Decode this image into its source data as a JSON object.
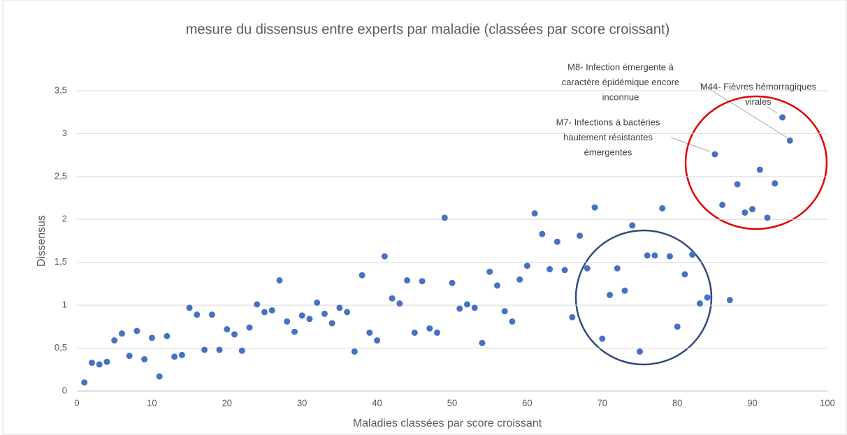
{
  "chart_data": {
    "type": "scatter",
    "title": "mesure du dissensus entre experts par maladie (classées par score croissant)",
    "x_label": "Maladies classées par score croissant",
    "y_label": "Dissensus",
    "color": "#4472c4",
    "grid": true,
    "xlim": [
      0,
      100
    ],
    "xticks": [
      0,
      10,
      20,
      30,
      40,
      50,
      60,
      70,
      80,
      90,
      100
    ],
    "ylim": [
      0,
      3.5
    ],
    "yticks": [
      0,
      {
        "value": 0.5,
        "label": "0,5"
      },
      1,
      {
        "value": 1.5,
        "label": "1,5"
      },
      2,
      {
        "value": 2.5,
        "label": "2,5"
      },
      3,
      {
        "value": 3.5,
        "label": "3,5"
      }
    ],
    "x": [
      1,
      2,
      3,
      4,
      5,
      6,
      7,
      8,
      9,
      10,
      11,
      12,
      13,
      14,
      15,
      16,
      17,
      18,
      19,
      20,
      21,
      22,
      23,
      24,
      25,
      26,
      27,
      28,
      29,
      30,
      31,
      32,
      33,
      34,
      35,
      36,
      37,
      38,
      39,
      40,
      41,
      42,
      43,
      44,
      45,
      46,
      47,
      48,
      49,
      50,
      51,
      52,
      53,
      54,
      55,
      56,
      57,
      58,
      59,
      60,
      61,
      62,
      63,
      64,
      65,
      66,
      67,
      68,
      69,
      70,
      71,
      72,
      73,
      74,
      75,
      76,
      77,
      78,
      79,
      80,
      81,
      82,
      83,
      84,
      85,
      86,
      87,
      88,
      89,
      90,
      91,
      92,
      93,
      94,
      95
    ],
    "values": [
      0.1,
      0.33,
      0.31,
      0.34,
      0.59,
      0.67,
      0.41,
      0.7,
      0.37,
      0.62,
      0.17,
      0.64,
      0.4,
      0.42,
      0.97,
      0.89,
      0.48,
      0.89,
      0.48,
      0.72,
      0.66,
      0.47,
      0.74,
      1.01,
      0.92,
      0.94,
      1.29,
      0.81,
      0.69,
      0.88,
      0.84,
      1.03,
      0.9,
      0.79,
      0.97,
      0.92,
      0.46,
      1.35,
      0.68,
      0.59,
      1.57,
      1.08,
      1.02,
      1.29,
      0.68,
      1.28,
      0.73,
      0.68,
      2.02,
      1.26,
      0.96,
      1.01,
      0.97,
      0.56,
      1.39,
      1.23,
      0.93,
      0.81,
      1.3,
      1.46,
      2.07,
      1.83,
      1.42,
      1.74,
      1.41,
      0.86,
      1.81,
      1.43,
      2.14,
      0.61,
      1.12,
      1.43,
      1.17,
      1.93,
      0.46,
      1.58,
      1.58,
      2.13,
      1.57,
      0.75,
      1.36,
      1.59,
      1.02,
      1.09,
      2.76,
      2.17,
      1.06,
      2.41,
      2.08,
      2.12,
      2.58,
      2.02,
      2.42,
      3.19,
      2.92
    ],
    "annotations": [
      {
        "lines": [
          "M8- Infection émergente à",
          "caractère épidémique encore",
          "inconnue"
        ]
      },
      {
        "lines": [
          "M44- Fièvres hémorragiques",
          "virales"
        ]
      },
      {
        "lines": [
          "M7- Infections à bactéries",
          "hautement résistantes",
          "émergentes"
        ]
      }
    ]
  }
}
